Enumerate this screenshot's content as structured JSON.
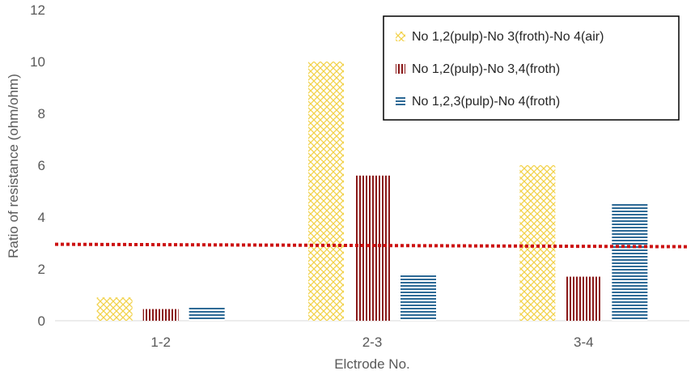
{
  "chart_data": {
    "type": "bar",
    "title": "",
    "xlabel": "Elctrode No.",
    "ylabel": "Ratio of resistance (ohm/ohm)",
    "ylim": [
      0,
      12
    ],
    "yticks": [
      0,
      2,
      4,
      6,
      8,
      10,
      12
    ],
    "grid": false,
    "legend_position": "top-right",
    "categories": [
      "1-2",
      "2-3",
      "3-4"
    ],
    "series": [
      {
        "name": "No 1,2(pulp)-No 3(froth)-No 4(air)",
        "values": [
          0.9,
          10.0,
          6.0
        ],
        "color": "#f2d24b",
        "pattern": "diagonal-cross"
      },
      {
        "name": "No 1,2(pulp)-No 3,4(froth)",
        "values": [
          0.45,
          5.6,
          1.7
        ],
        "color": "#8b1a1a",
        "pattern": "vertical"
      },
      {
        "name": "No 1,2,3(pulp)-No 4(froth)",
        "values": [
          0.5,
          1.8,
          4.5
        ],
        "color": "#2e6a96",
        "pattern": "horizontal"
      }
    ],
    "reference_line": {
      "value": 2.95,
      "color": "#cc1111",
      "style": "dotted"
    }
  }
}
